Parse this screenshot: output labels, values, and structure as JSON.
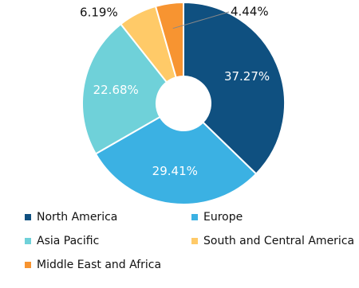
{
  "chart_data": {
    "type": "pie",
    "donut": true,
    "categories": [
      "North America",
      "Europe",
      "Asia Pacific",
      "South and Central America",
      "Middle East and Africa"
    ],
    "values": [
      37.27,
      29.41,
      22.68,
      6.19,
      4.44
    ],
    "value_labels": [
      "37.27%",
      "29.41%",
      "22.68%",
      "6.19%",
      "4.44%"
    ],
    "colors": [
      "#0f5080",
      "#3bb1e3",
      "#6fd1d9",
      "#ffca68",
      "#f79431"
    ],
    "legend": "bottom"
  }
}
